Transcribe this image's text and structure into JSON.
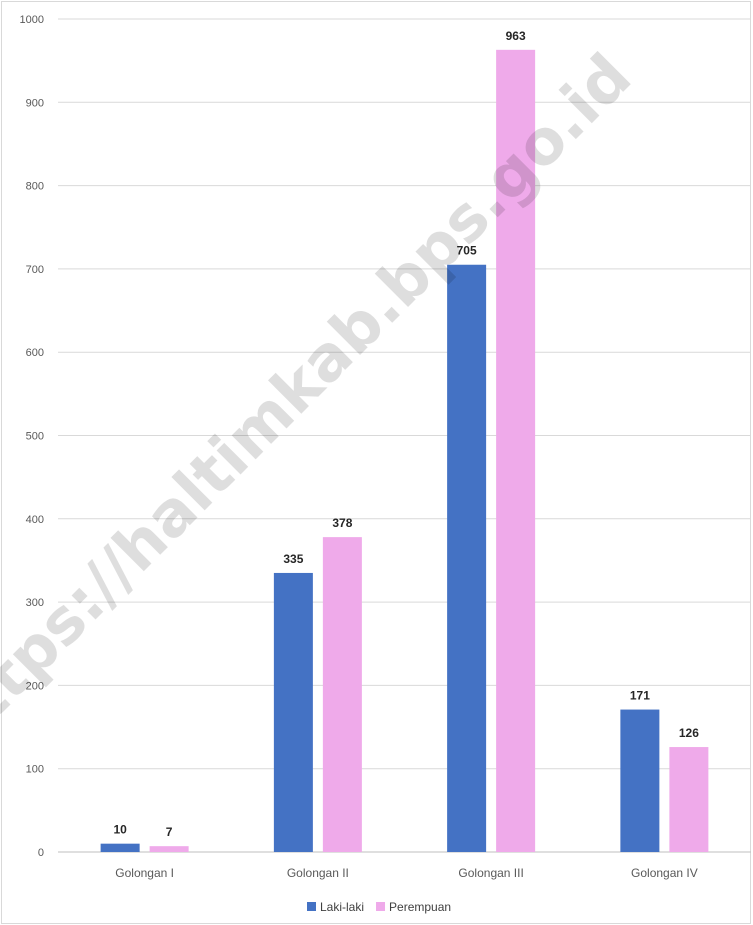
{
  "chart_data": {
    "type": "bar",
    "categories": [
      "Golongan I",
      "Golongan II",
      "Golongan III",
      "Golongan IV"
    ],
    "series": [
      {
        "name": "Laki-laki",
        "values": [
          10,
          335,
          705,
          171
        ],
        "color": "#4472C4"
      },
      {
        "name": "Perempuan",
        "values": [
          7,
          378,
          963,
          126
        ],
        "color": "#EFAAEA"
      }
    ],
    "ylim": [
      0,
      1000
    ],
    "yticks": [
      0,
      100,
      200,
      300,
      400,
      500,
      600,
      700,
      800,
      900,
      1000
    ],
    "grid": true,
    "legend_position": "bottom",
    "watermark": "https://haltimkab.bps.go.id"
  }
}
